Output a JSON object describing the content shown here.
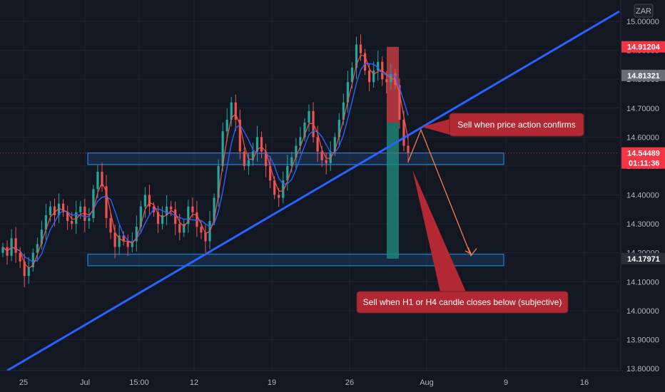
{
  "currency": "ZAR",
  "colors": {
    "background": "#131722",
    "grid": "#1f2330",
    "up": "#26a69a",
    "down": "#ef5350",
    "trendline": "#2962ff",
    "zone_fill": "#1e3a5f",
    "zone_border": "#2196f3",
    "callout": "#b22833",
    "projection": "#f57c4a",
    "ma_red": "#ef5350",
    "ma_blue": "#2962ff"
  },
  "price_tags": [
    {
      "label": "14.91204",
      "value": 14.91204,
      "color": "#f23645"
    },
    {
      "label": "14.81321",
      "value": 14.81321,
      "color": "#6a6d78"
    },
    {
      "label": "14.54489",
      "value": 14.54489,
      "color": "#f23645",
      "sub": "01:11:36"
    },
    {
      "label": "14.17971",
      "value": 14.17971,
      "color": "#2a2e39"
    }
  ],
  "callouts": [
    {
      "text": "Sell when price action confirms"
    },
    {
      "text": "Sell when H1 or H4 candle closes below (subjective)"
    }
  ],
  "chart_data": {
    "type": "candlestick",
    "title": "",
    "y_axis": {
      "ticks": [
        "15.00000",
        "14.90000",
        "14.80000",
        "14.70000",
        "14.60000",
        "14.50000",
        "14.40000",
        "14.30000",
        "14.20000",
        "14.10000",
        "14.00000",
        "13.90000",
        "13.80000"
      ],
      "range": [
        13.77,
        15.07
      ]
    },
    "x_axis": {
      "tick_labels": [
        "25",
        "Jul",
        "15:00",
        "12",
        "19",
        "26",
        "Aug",
        "9",
        "16"
      ]
    },
    "current_price": 14.54489,
    "countdown": "01:11:36",
    "zones": [
      {
        "name": "resistance-turned-support",
        "low": 14.505,
        "high": 14.545
      },
      {
        "name": "target-support",
        "low": 14.155,
        "high": 14.195
      }
    ],
    "position_tool": {
      "entry": 14.65,
      "stop": 14.91204,
      "target": 14.17971
    },
    "trendline": {
      "from_price": 13.77,
      "to_price": 15.05
    },
    "projection_path": [
      14.515,
      14.625,
      14.19,
      14.215
    ],
    "candle_closes": [
      14.22,
      14.19,
      14.25,
      14.2,
      14.17,
      14.12,
      14.15,
      14.2,
      14.23,
      14.28,
      14.33,
      14.36,
      14.33,
      14.37,
      14.34,
      14.31,
      14.3,
      14.34,
      14.36,
      14.31,
      14.32,
      14.42,
      14.48,
      14.43,
      14.32,
      14.27,
      14.22,
      14.26,
      14.24,
      14.22,
      14.24,
      14.29,
      14.36,
      14.4,
      14.36,
      14.34,
      14.3,
      14.33,
      14.36,
      14.35,
      14.3,
      14.27,
      14.3,
      14.36,
      14.34,
      14.29,
      14.27,
      14.24,
      14.31,
      14.39,
      14.5,
      14.62,
      14.66,
      14.72,
      14.66,
      14.55,
      14.5,
      14.52,
      14.55,
      14.6,
      14.55,
      14.5,
      14.45,
      14.4,
      14.39,
      14.45,
      14.5,
      14.53,
      14.57,
      14.6,
      14.65,
      14.69,
      14.6,
      14.55,
      14.52,
      14.51,
      14.55,
      14.6,
      14.66,
      14.72,
      14.79,
      14.84,
      14.92,
      14.89,
      14.83,
      14.79,
      14.83,
      14.86,
      14.8,
      14.79,
      14.82,
      14.78,
      14.66,
      14.57,
      14.545
    ]
  }
}
